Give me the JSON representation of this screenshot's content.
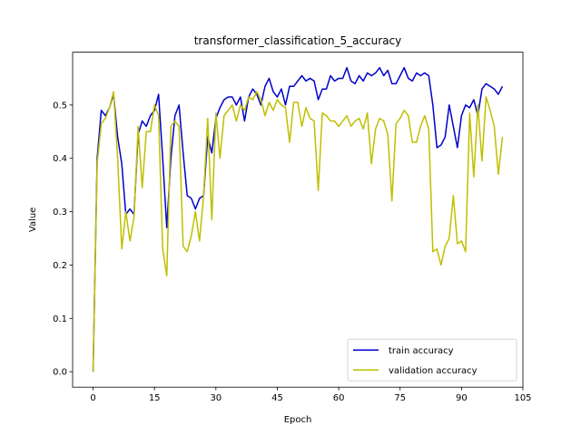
{
  "chart_data": {
    "type": "line",
    "title": "transformer_classification_5_accuracy",
    "x_label": "Epoch",
    "y_label": "Value",
    "x": [
      0,
      1,
      2,
      3,
      4,
      5,
      6,
      7,
      8,
      9,
      10,
      11,
      12,
      13,
      14,
      15,
      16,
      17,
      18,
      19,
      20,
      21,
      22,
      23,
      24,
      25,
      26,
      27,
      28,
      29,
      30,
      31,
      32,
      33,
      34,
      35,
      36,
      37,
      38,
      39,
      40,
      41,
      42,
      43,
      44,
      45,
      46,
      47,
      48,
      49,
      50,
      51,
      52,
      53,
      54,
      55,
      56,
      57,
      58,
      59,
      60,
      61,
      62,
      63,
      64,
      65,
      66,
      67,
      68,
      69,
      70,
      71,
      72,
      73,
      74,
      75,
      76,
      77,
      78,
      79,
      80,
      81,
      82,
      83,
      84,
      85,
      86,
      87,
      88,
      89,
      90,
      91,
      92,
      93,
      94,
      95,
      96,
      97,
      98,
      99,
      100
    ],
    "series": [
      {
        "name": "train accuracy",
        "color": "#0000cd",
        "values": [
          0.0,
          0.4,
          0.49,
          0.48,
          0.495,
          0.52,
          0.44,
          0.39,
          0.295,
          0.305,
          0.295,
          0.445,
          0.47,
          0.46,
          0.48,
          0.49,
          0.52,
          0.4,
          0.27,
          0.4,
          0.48,
          0.5,
          0.41,
          0.33,
          0.325,
          0.305,
          0.325,
          0.33,
          0.44,
          0.41,
          0.475,
          0.495,
          0.51,
          0.515,
          0.515,
          0.5,
          0.515,
          0.47,
          0.515,
          0.53,
          0.52,
          0.5,
          0.535,
          0.55,
          0.525,
          0.515,
          0.53,
          0.5,
          0.535,
          0.535,
          0.545,
          0.555,
          0.545,
          0.55,
          0.545,
          0.51,
          0.53,
          0.53,
          0.555,
          0.545,
          0.55,
          0.55,
          0.57,
          0.545,
          0.54,
          0.555,
          0.545,
          0.56,
          0.555,
          0.56,
          0.57,
          0.555,
          0.565,
          0.54,
          0.54,
          0.555,
          0.57,
          0.55,
          0.545,
          0.56,
          0.555,
          0.56,
          0.555,
          0.5,
          0.42,
          0.425,
          0.44,
          0.5,
          0.46,
          0.42,
          0.48,
          0.5,
          0.495,
          0.51,
          0.48,
          0.53,
          0.54,
          0.535,
          0.53,
          0.52,
          0.535
        ]
      },
      {
        "name": "validation accuracy",
        "color": "#bfbf00",
        "values": [
          0.0,
          0.39,
          0.465,
          0.475,
          0.495,
          0.525,
          0.4,
          0.23,
          0.3,
          0.245,
          0.29,
          0.46,
          0.345,
          0.45,
          0.45,
          0.5,
          0.48,
          0.23,
          0.18,
          0.46,
          0.47,
          0.46,
          0.235,
          0.225,
          0.255,
          0.3,
          0.245,
          0.33,
          0.475,
          0.285,
          0.485,
          0.4,
          0.48,
          0.49,
          0.5,
          0.47,
          0.5,
          0.49,
          0.515,
          0.51,
          0.525,
          0.51,
          0.48,
          0.505,
          0.49,
          0.51,
          0.5,
          0.495,
          0.43,
          0.505,
          0.505,
          0.46,
          0.495,
          0.475,
          0.47,
          0.34,
          0.485,
          0.48,
          0.47,
          0.47,
          0.46,
          0.47,
          0.48,
          0.46,
          0.47,
          0.475,
          0.455,
          0.485,
          0.39,
          0.455,
          0.475,
          0.47,
          0.445,
          0.32,
          0.465,
          0.475,
          0.49,
          0.48,
          0.43,
          0.43,
          0.46,
          0.48,
          0.455,
          0.225,
          0.23,
          0.2,
          0.235,
          0.25,
          0.33,
          0.24,
          0.245,
          0.225,
          0.485,
          0.365,
          0.5,
          0.395,
          0.515,
          0.49,
          0.46,
          0.37,
          0.44
        ]
      }
    ],
    "xlim": [
      -5,
      105
    ],
    "xticks": [
      0,
      15,
      30,
      45,
      60,
      75,
      90,
      105
    ],
    "ylim": [
      -0.029,
      0.599
    ],
    "yticks": [
      {
        "value": 0,
        "label": "0.0"
      },
      0.1,
      0.2,
      0.3,
      0.4,
      0.5
    ],
    "legend": "lower right"
  }
}
